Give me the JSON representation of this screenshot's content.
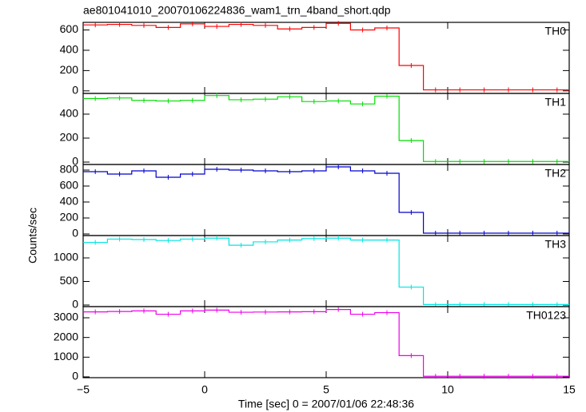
{
  "chart_data": [
    {
      "type": "line",
      "step": true,
      "title": "ae801041010_20070106224836_wam1_trn_4band_short.qdp",
      "label": "TH0",
      "color": "#ff0000",
      "x": [
        -4.5,
        -3.5,
        -2.5,
        -1.5,
        -0.5,
        0.5,
        1.5,
        2.5,
        3.5,
        4.5,
        5.5,
        6.5,
        7.5,
        8.5,
        9.5,
        10.5,
        11.5,
        12.5,
        13.5,
        14.5
      ],
      "values": [
        650,
        655,
        645,
        625,
        660,
        635,
        655,
        645,
        610,
        625,
        665,
        600,
        620,
        250,
        10,
        10,
        10,
        10,
        10,
        10
      ],
      "xlim": [
        -5,
        15
      ],
      "xticks": [
        {
          "value": -5,
          "label": "−5"
        },
        0,
        5,
        10,
        15
      ],
      "ylim": [
        -25,
        675
      ],
      "yticks": [
        0,
        200,
        400,
        600
      ]
    },
    {
      "type": "line",
      "step": true,
      "label": "TH1",
      "color": "#00dd00",
      "x": [
        -4.5,
        -3.5,
        -2.5,
        -1.5,
        -0.5,
        0.5,
        1.5,
        2.5,
        3.5,
        4.5,
        5.5,
        6.5,
        7.5,
        8.5,
        9.5,
        10.5,
        11.5,
        12.5,
        13.5,
        14.5
      ],
      "values": [
        530,
        535,
        515,
        510,
        515,
        555,
        520,
        525,
        545,
        505,
        510,
        485,
        550,
        180,
        5,
        5,
        5,
        5,
        5,
        5
      ],
      "xlim": [
        -5,
        15
      ],
      "xticks": [
        {
          "value": -5,
          "label": "−5"
        },
        0,
        5,
        10,
        15
      ],
      "ylim": [
        -20,
        573
      ],
      "yticks": [
        0,
        200,
        400
      ]
    },
    {
      "type": "line",
      "step": true,
      "label": "TH2",
      "color": "#0000cc",
      "ylabel": "Counts/sec",
      "x": [
        -4.5,
        -3.5,
        -2.5,
        -1.5,
        -0.5,
        0.5,
        1.5,
        2.5,
        3.5,
        4.5,
        5.5,
        6.5,
        7.5,
        8.5,
        9.5,
        10.5,
        11.5,
        12.5,
        13.5,
        14.5
      ],
      "values": [
        780,
        750,
        790,
        710,
        750,
        810,
        800,
        790,
        780,
        790,
        840,
        790,
        760,
        270,
        10,
        10,
        10,
        10,
        10,
        10
      ],
      "xlim": [
        -5,
        15
      ],
      "xticks": [
        {
          "value": -5,
          "label": "−5"
        },
        0,
        5,
        10,
        15
      ],
      "ylim": [
        -20,
        870
      ],
      "yticks": [
        0,
        200,
        400,
        600,
        800
      ]
    },
    {
      "type": "line",
      "step": true,
      "label": "TH3",
      "color": "#00e5e5",
      "x": [
        -4.5,
        -3.5,
        -2.5,
        -1.5,
        -0.5,
        0.5,
        1.5,
        2.5,
        3.5,
        4.5,
        5.5,
        6.5,
        7.5,
        8.5,
        9.5,
        10.5,
        11.5,
        12.5,
        13.5,
        14.5
      ],
      "values": [
        1330,
        1400,
        1390,
        1370,
        1400,
        1420,
        1270,
        1340,
        1380,
        1410,
        1420,
        1380,
        1380,
        380,
        10,
        10,
        10,
        10,
        10,
        10
      ],
      "xlim": [
        -5,
        15
      ],
      "xticks": [
        {
          "value": -5,
          "label": "−5"
        },
        0,
        5,
        10,
        15
      ],
      "ylim": [
        -34,
        1475
      ],
      "yticks": [
        0,
        500,
        1000
      ]
    },
    {
      "type": "line",
      "step": true,
      "label": "TH0123",
      "color": "#ee00ee",
      "xlabel": "Time [sec] 0 = 2007/01/06 22:48:36",
      "x": [
        -4.5,
        -3.5,
        -2.5,
        -1.5,
        -0.5,
        0.5,
        1.5,
        2.5,
        3.5,
        4.5,
        5.5,
        6.5,
        7.5,
        8.5,
        9.5,
        10.5,
        11.5,
        12.5,
        13.5,
        14.5
      ],
      "values": [
        3300,
        3320,
        3350,
        3180,
        3350,
        3390,
        3280,
        3290,
        3300,
        3310,
        3420,
        3180,
        3260,
        1080,
        30,
        30,
        30,
        30,
        30,
        30
      ],
      "xlim": [
        -5,
        15
      ],
      "xticks": [
        {
          "value": -5,
          "label": "−5"
        },
        0,
        5,
        10,
        15
      ],
      "ylim": [
        -40,
        3567
      ],
      "yticks": [
        0,
        1000,
        2000,
        3000
      ]
    }
  ]
}
